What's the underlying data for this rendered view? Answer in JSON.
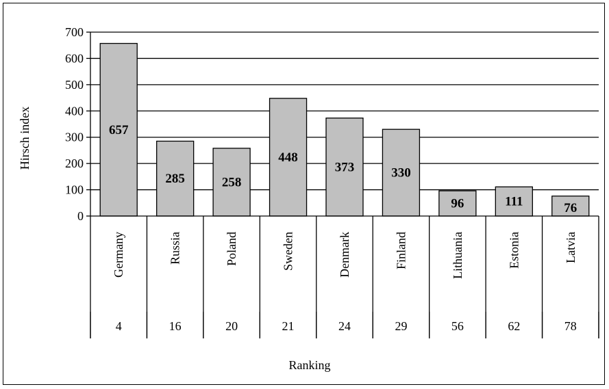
{
  "chart_data": {
    "type": "bar",
    "categories": [
      "Germany",
      "Russia",
      "Poland",
      "Sweden",
      "Denmark",
      "Finland",
      "Lithuania",
      "Estonia",
      "Latvia"
    ],
    "rankings": [
      "4",
      "16",
      "20",
      "21",
      "24",
      "29",
      "56",
      "62",
      "78"
    ],
    "values": [
      657,
      285,
      258,
      448,
      373,
      330,
      96,
      111,
      76
    ],
    "ylabel": "Hirsch index",
    "xlabel": "Ranking",
    "ylim": [
      0,
      700
    ],
    "yticks": [
      0,
      100,
      200,
      300,
      400,
      500,
      600,
      700
    ],
    "grid": true,
    "bar_color": "#c0c0c0"
  }
}
